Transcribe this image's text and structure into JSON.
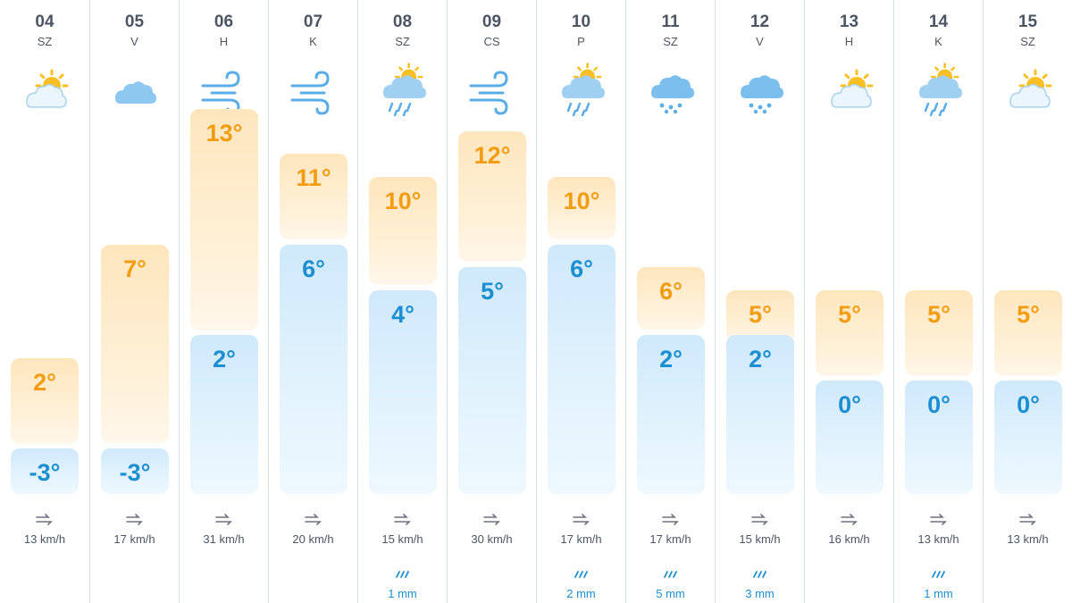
{
  "colors": {
    "high_text": "#f39c12",
    "low_text": "#1b8fd1",
    "precip_text": "#1b8fd1",
    "divider": "#d8dde3"
  },
  "temp_scale": {
    "min": -3,
    "max": 13
  },
  "days": [
    {
      "date": "04",
      "dow": "SZ",
      "icon": "partly-sunny-icon",
      "high": "2°",
      "low": "-3°",
      "high_c": 2,
      "low_c": -3,
      "wind": "13 km/h",
      "precip": ""
    },
    {
      "date": "05",
      "dow": "V",
      "icon": "cloud-icon",
      "high": "7°",
      "low": "-3°",
      "high_c": 7,
      "low_c": -3,
      "wind": "17 km/h",
      "precip": ""
    },
    {
      "date": "06",
      "dow": "H",
      "icon": "wind-icon",
      "high": "13°",
      "low": "2°",
      "high_c": 13,
      "low_c": 2,
      "wind": "31 km/h",
      "precip": ""
    },
    {
      "date": "07",
      "dow": "K",
      "icon": "wind-icon",
      "high": "11°",
      "low": "6°",
      "high_c": 11,
      "low_c": 6,
      "wind": "20 km/h",
      "precip": ""
    },
    {
      "date": "08",
      "dow": "SZ",
      "icon": "sun-rain-icon",
      "high": "10°",
      "low": "4°",
      "high_c": 10,
      "low_c": 4,
      "wind": "15 km/h",
      "precip": "1 mm"
    },
    {
      "date": "09",
      "dow": "CS",
      "icon": "wind-icon",
      "high": "12°",
      "low": "5°",
      "high_c": 12,
      "low_c": 5,
      "wind": "30 km/h",
      "precip": ""
    },
    {
      "date": "10",
      "dow": "P",
      "icon": "sun-rain-icon",
      "high": "10°",
      "low": "6°",
      "high_c": 10,
      "low_c": 6,
      "wind": "17 km/h",
      "precip": "2 mm"
    },
    {
      "date": "11",
      "dow": "SZ",
      "icon": "rain-cloud-icon",
      "high": "6°",
      "low": "2°",
      "high_c": 6,
      "low_c": 2,
      "wind": "17 km/h",
      "precip": "5 mm"
    },
    {
      "date": "12",
      "dow": "V",
      "icon": "rain-cloud-icon",
      "high": "5°",
      "low": "2°",
      "high_c": 5,
      "low_c": 2,
      "wind": "15 km/h",
      "precip": "3 mm"
    },
    {
      "date": "13",
      "dow": "H",
      "icon": "partly-sunny-icon",
      "high": "5°",
      "low": "0°",
      "high_c": 5,
      "low_c": 0,
      "wind": "16 km/h",
      "precip": ""
    },
    {
      "date": "14",
      "dow": "K",
      "icon": "sun-rain-icon",
      "high": "5°",
      "low": "0°",
      "high_c": 5,
      "low_c": 0,
      "wind": "13 km/h",
      "precip": "1 mm"
    },
    {
      "date": "15",
      "dow": "SZ",
      "icon": "partly-sunny-icon",
      "high": "5°",
      "low": "0°",
      "high_c": 5,
      "low_c": 0,
      "wind": "13 km/h",
      "precip": ""
    }
  ]
}
